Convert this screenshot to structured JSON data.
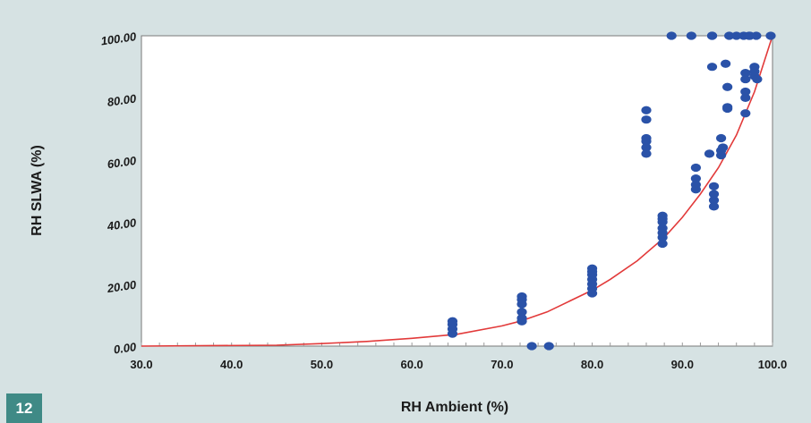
{
  "figure_number": "12",
  "chart_data": {
    "type": "scatter",
    "title": "",
    "xlabel": "RH Ambient (%)",
    "ylabel": "RH SLWA (%)",
    "xlim": [
      30,
      100
    ],
    "ylim": [
      0,
      100
    ],
    "x_ticks": [
      "30.0",
      "40.0",
      "50.0",
      "60.0",
      "70.0",
      "80.0",
      "90.0",
      "100.0"
    ],
    "y_ticks": [
      "0.00",
      "20.00",
      "40.00",
      "60.00",
      "80.00",
      "100.00"
    ],
    "grid": false,
    "legend": "none",
    "point_color": "#2a52a8",
    "curve_color": "#e23a3a",
    "series": [
      {
        "type": "scatter",
        "x": [
          64.5,
          64.5,
          64.5,
          64.5,
          72.2,
          72.2,
          72.2,
          72.2,
          72.2,
          72.2,
          73.3,
          75.2,
          80,
          80,
          80,
          80,
          80,
          80,
          80,
          86,
          86,
          86,
          86,
          86,
          86,
          87.8,
          87.8,
          87.8,
          87.8,
          87.8,
          87.8,
          87.8,
          88.8,
          91,
          91.5,
          91.5,
          91.5,
          91.5,
          93,
          93.3,
          93.3,
          93.5,
          93.5,
          93.5,
          93.3,
          93.5,
          94.3,
          94.3,
          94.3,
          94.5,
          94.8,
          95,
          95,
          95,
          95.2,
          96,
          96.8,
          97,
          97,
          97,
          97,
          97,
          97.4,
          97.5,
          98,
          98,
          98,
          98.2,
          98.3,
          99.8
        ],
        "y": [
          4,
          5.5,
          7,
          8,
          9,
          11,
          13.5,
          15,
          16,
          8,
          0,
          0,
          17,
          18.5,
          20,
          21.5,
          23,
          24,
          25,
          62,
          64,
          66,
          67,
          73,
          76,
          33,
          35,
          36.5,
          38,
          40,
          41,
          42,
          100,
          100,
          50.5,
          52,
          54,
          57.5,
          62,
          100,
          100,
          45,
          47,
          49,
          90,
          51.5,
          61.5,
          63,
          67,
          64,
          91,
          77,
          76.5,
          83.5,
          100,
          100,
          100,
          75,
          80,
          82,
          86,
          88,
          100,
          100,
          87,
          88.5,
          90,
          100,
          86,
          100
        ]
      }
    ],
    "fit_curve": {
      "type": "line",
      "x": [
        30,
        45,
        50,
        55,
        60,
        65,
        70,
        72,
        75,
        80,
        82,
        85,
        88,
        90,
        92,
        94,
        96,
        98,
        100
      ],
      "y": [
        0,
        0.3,
        0.8,
        1.5,
        2.5,
        3.8,
        6.5,
        8,
        11,
        18,
        21.5,
        27.5,
        35,
        41.5,
        49,
        57.5,
        68,
        82,
        100
      ]
    }
  }
}
